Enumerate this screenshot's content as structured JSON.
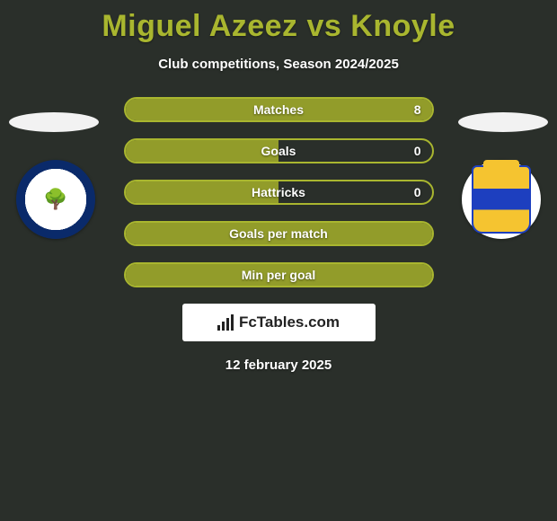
{
  "title": "Miguel Azeez vs Knoyle",
  "subtitle": "Club competitions, Season 2024/2025",
  "date": "12 february 2025",
  "brand": "FcTables.com",
  "colors": {
    "accent": "#a9b62f",
    "background": "#2a2f2a",
    "pill_fill": "#929c2a",
    "text": "#ffffff"
  },
  "stats": [
    {
      "label": "Matches",
      "value_right": "8",
      "fill_pct": 100
    },
    {
      "label": "Goals",
      "value_right": "0",
      "fill_pct": 50
    },
    {
      "label": "Hattricks",
      "value_right": "0",
      "fill_pct": 50
    },
    {
      "label": "Goals per match",
      "value_right": "",
      "fill_pct": 100
    },
    {
      "label": "Min per goal",
      "value_right": "",
      "fill_pct": 100
    }
  ]
}
